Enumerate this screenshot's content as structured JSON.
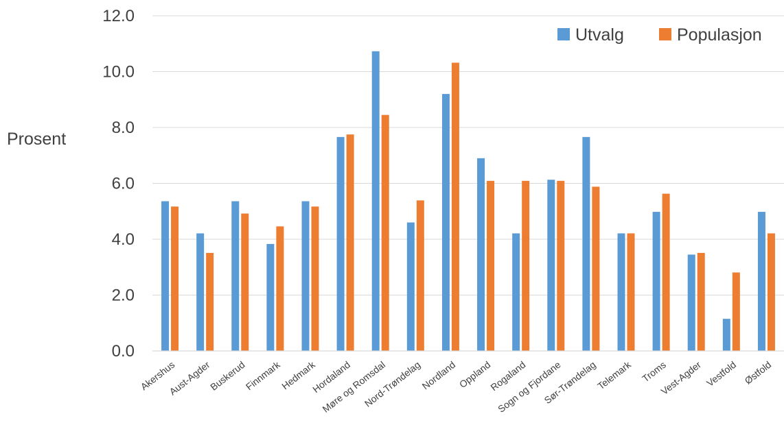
{
  "chart_data": {
    "type": "bar",
    "title": "",
    "xlabel": "",
    "ylabel": "Prosent",
    "ylim": [
      0,
      12
    ],
    "yticks": [
      "0.0",
      "2.0",
      "4.0",
      "6.0",
      "8.0",
      "10.0",
      "12.0"
    ],
    "grid": true,
    "legend_position": "top-right",
    "categories": [
      "Akershus",
      "Aust-Agder",
      "Buskerud",
      "Finnmark",
      "Hedmark",
      "Hordaland",
      "Møre og Romsdal",
      "Nord-Trøndelag",
      "Nordland",
      "Oppland",
      "Rogaland",
      "Sogn og Fjordane",
      "Sør-Trøndelag",
      "Telemark",
      "Troms",
      "Vest-Agder",
      "Vestfold",
      "Østfold"
    ],
    "series": [
      {
        "name": "Utvalg",
        "color": "#5B9BD5",
        "values": [
          5.36,
          4.21,
          5.36,
          3.83,
          5.36,
          7.66,
          10.73,
          4.6,
          9.2,
          6.9,
          4.21,
          6.13,
          7.66,
          4.21,
          4.98,
          3.45,
          1.15,
          4.98
        ]
      },
      {
        "name": "Populasjon",
        "color": "#ED7D31",
        "values": [
          5.17,
          3.51,
          4.92,
          4.46,
          5.17,
          7.75,
          8.45,
          5.39,
          10.32,
          6.09,
          6.09,
          6.09,
          5.88,
          4.21,
          5.63,
          3.51,
          2.81,
          4.21
        ]
      }
    ]
  }
}
